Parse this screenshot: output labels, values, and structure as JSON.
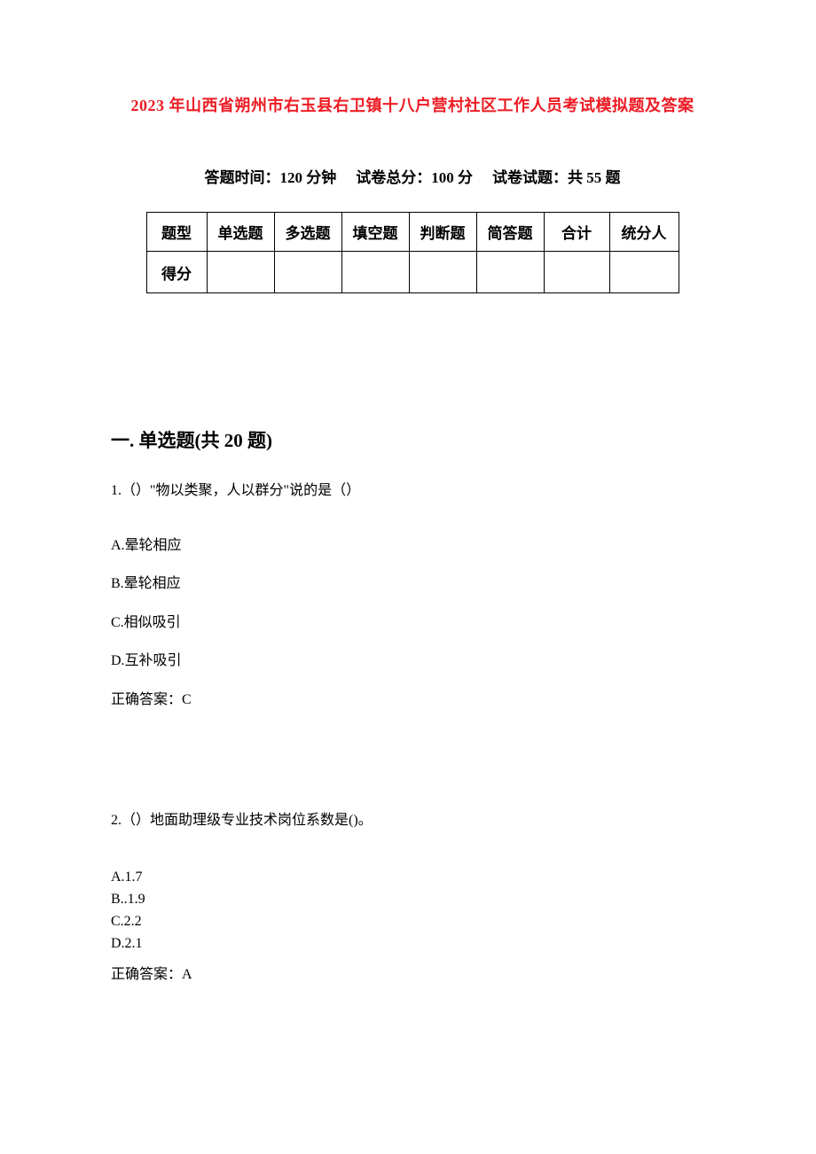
{
  "colors": {
    "title": "#ed1c24",
    "text": "#000000",
    "background": "#ffffff",
    "border": "#000000"
  },
  "typography": {
    "title_fontsize": 18,
    "info_fontsize": 17,
    "table_fontsize": 17,
    "heading_fontsize": 21,
    "body_fontsize": 16,
    "font_family": "SimSun"
  },
  "title": "2023 年山西省朔州市右玉县右卫镇十八户营村社区工作人员考试模拟题及答案",
  "exam_info": {
    "time_label": "答题时间：",
    "time_value": "120 分钟",
    "total_label": "试卷总分：",
    "total_value": "100 分",
    "count_label": "试卷试题：",
    "count_value": "共 55 题"
  },
  "table": {
    "headers": [
      "题型",
      "单选题",
      "多选题",
      "填空题",
      "判断题",
      "简答题",
      "合计",
      "统分人"
    ],
    "row_label": "得分"
  },
  "section1": {
    "heading": "一. 单选题(共 20 题)",
    "q1": {
      "text": "1.（）\"物以类聚，人以群分\"说的是（）",
      "options": {
        "A": "A.晕轮相应",
        "B": "B.晕轮相应",
        "C": "C.相似吸引",
        "D": "D.互补吸引"
      },
      "answer": "正确答案：C"
    },
    "q2": {
      "text": "2.（）地面助理级专业技术岗位系数是()。",
      "options": {
        "A": "A.1.7",
        "B": "B..1.9",
        "C": "C.2.2",
        "D": "D.2.1"
      },
      "answer": "正确答案：A"
    }
  }
}
